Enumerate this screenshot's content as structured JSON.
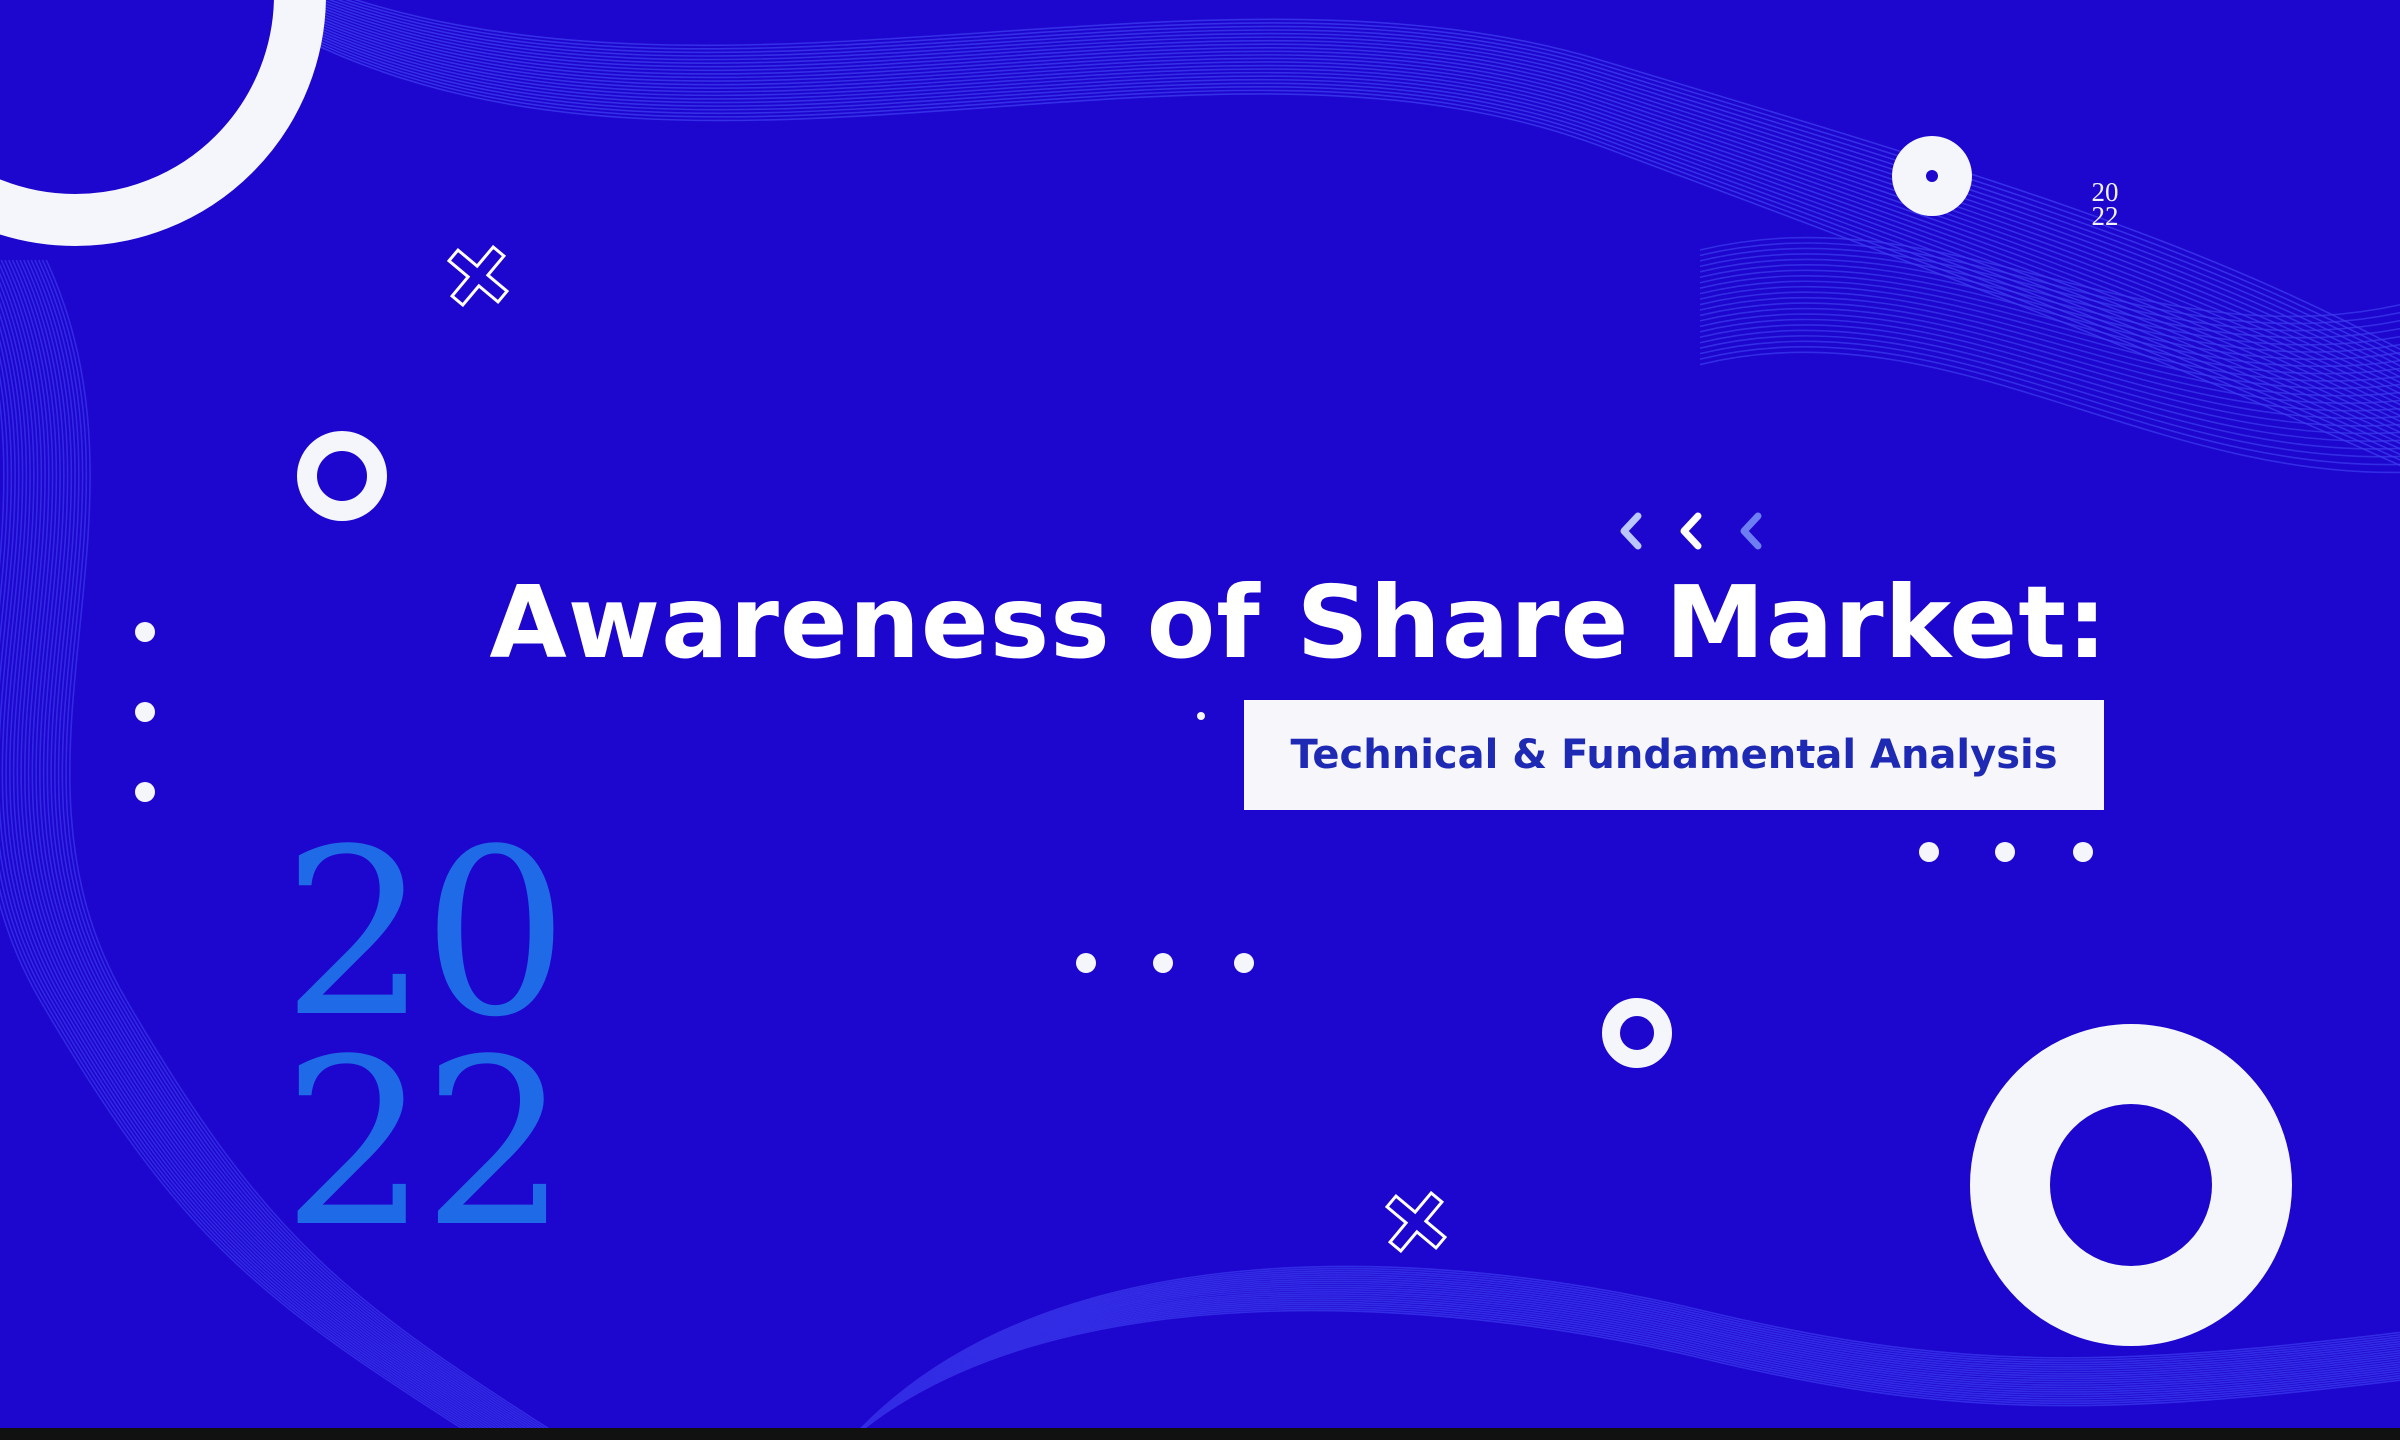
{
  "slide": {
    "title": "Awareness of Share Market:",
    "subtitle": "Technical & Fundamental Analysis",
    "year_large": {
      "line1": "20",
      "line2": "22"
    },
    "year_small": {
      "line1": "20",
      "line2": "22"
    }
  },
  "colors": {
    "background": "#1d06cd",
    "accent_blue": "#1f6ae6",
    "subtitle_text": "#1f2ab4",
    "shape_white": "#f5f6fb"
  },
  "icons": [
    "ring-shape",
    "cross-icon",
    "dot-shape",
    "chevron-left-icon",
    "wave-pattern"
  ]
}
